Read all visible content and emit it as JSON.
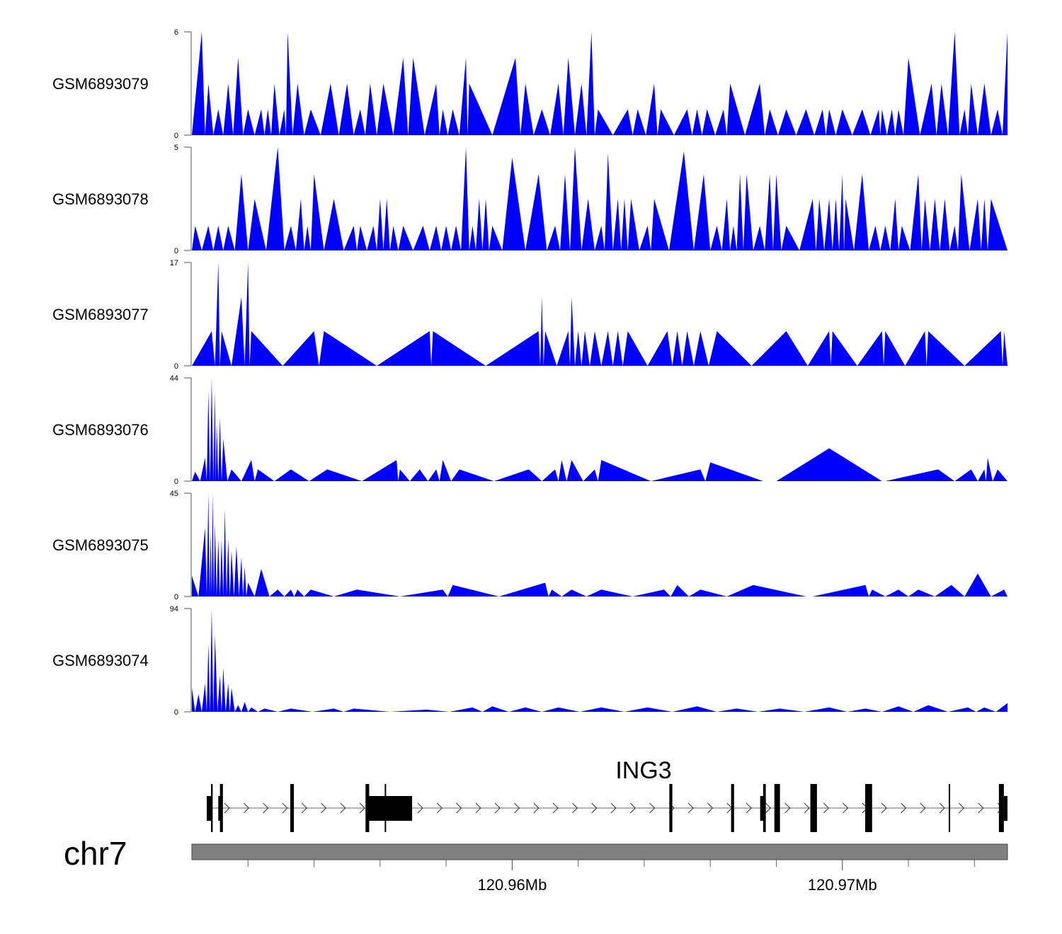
{
  "chart_data": {
    "type": "area",
    "title": "",
    "chromosome": "chr7",
    "x_units": "kb offset from 120.95 Mb",
    "xlim": [
      0.3,
      25.0
    ],
    "fill_color": "#0000ff",
    "x_axis": {
      "major_ticks": [
        {
          "pos": 10,
          "label": "120.96Mb"
        },
        {
          "pos": 20,
          "label": "120.97Mb"
        }
      ],
      "minor_ticks": [
        2,
        4,
        6,
        8,
        12,
        14,
        16,
        18,
        22,
        24
      ]
    },
    "tracks": [
      {
        "name": "GSM6893079",
        "ylim": [
          0,
          6
        ],
        "ytick_labels": [
          "0",
          "6"
        ],
        "points": [
          [
            0.6,
            6
          ],
          [
            0.8,
            3
          ],
          [
            1.1,
            1.5
          ],
          [
            1.4,
            3
          ],
          [
            1.7,
            4.5
          ],
          [
            2.0,
            1.5
          ],
          [
            2.4,
            1.5
          ],
          [
            2.6,
            1.5
          ],
          [
            2.8,
            3
          ],
          [
            3.1,
            1.5
          ],
          [
            3.2,
            6
          ],
          [
            3.5,
            3
          ],
          [
            3.9,
            1.5
          ],
          [
            4.5,
            3
          ],
          [
            5.0,
            3
          ],
          [
            5.4,
            1.5
          ],
          [
            5.7,
            3
          ],
          [
            6.1,
            3
          ],
          [
            6.7,
            4.5
          ],
          [
            7.0,
            4.5
          ],
          [
            7.7,
            3
          ],
          [
            7.9,
            1.5
          ],
          [
            8.2,
            1.5
          ],
          [
            8.6,
            4.5
          ],
          [
            8.7,
            3
          ],
          [
            10.1,
            4.5
          ],
          [
            10.4,
            3
          ],
          [
            10.9,
            1.5
          ],
          [
            11.4,
            3
          ],
          [
            11.7,
            4.5
          ],
          [
            12.1,
            3
          ],
          [
            12.4,
            6
          ],
          [
            12.6,
            1.5
          ],
          [
            13.5,
            1.5
          ],
          [
            13.8,
            1.5
          ],
          [
            14.3,
            3
          ],
          [
            14.5,
            1.5
          ],
          [
            15.3,
            1.5
          ],
          [
            15.6,
            1.5
          ],
          [
            15.9,
            1.5
          ],
          [
            16.4,
            1.5
          ],
          [
            16.6,
            3
          ],
          [
            17.5,
            3
          ],
          [
            17.8,
            1.5
          ],
          [
            18.3,
            1.5
          ],
          [
            18.9,
            1.5
          ],
          [
            19.4,
            1.5
          ],
          [
            19.6,
            1.5
          ],
          [
            20.0,
            1.5
          ],
          [
            20.6,
            1.5
          ],
          [
            21.1,
            1.5
          ],
          [
            21.2,
            1.5
          ],
          [
            21.5,
            1.5
          ],
          [
            21.7,
            1.5
          ],
          [
            22.0,
            4.5
          ],
          [
            22.7,
            3
          ],
          [
            23.0,
            3
          ],
          [
            23.4,
            6
          ],
          [
            23.7,
            1.5
          ],
          [
            23.9,
            3
          ],
          [
            24.3,
            3
          ],
          [
            24.7,
            1.5
          ],
          [
            25.0,
            6
          ]
        ]
      },
      {
        "name": "GSM6893078",
        "ylim": [
          0,
          5
        ],
        "ytick_labels": [
          "0",
          "5"
        ],
        "points": [
          [
            0.4,
            1.2
          ],
          [
            0.8,
            1.2
          ],
          [
            1.1,
            1.2
          ],
          [
            1.4,
            1.2
          ],
          [
            1.8,
            3.7
          ],
          [
            2.2,
            2.5
          ],
          [
            2.9,
            5
          ],
          [
            3.3,
            1.2
          ],
          [
            3.6,
            2.5
          ],
          [
            3.8,
            1.2
          ],
          [
            4.0,
            3.7
          ],
          [
            4.6,
            2.5
          ],
          [
            5.2,
            1.2
          ],
          [
            5.4,
            1.2
          ],
          [
            5.8,
            1.2
          ],
          [
            6.0,
            2.5
          ],
          [
            6.2,
            2.5
          ],
          [
            6.4,
            1.2
          ],
          [
            6.7,
            1.2
          ],
          [
            7.3,
            1.2
          ],
          [
            7.7,
            1.2
          ],
          [
            8.0,
            1.2
          ],
          [
            8.3,
            1.2
          ],
          [
            8.6,
            5
          ],
          [
            8.8,
            1.2
          ],
          [
            9.0,
            2.5
          ],
          [
            9.2,
            2.5
          ],
          [
            9.4,
            1.2
          ],
          [
            10.0,
            4.5
          ],
          [
            10.8,
            3.7
          ],
          [
            11.3,
            1.2
          ],
          [
            11.6,
            3.7
          ],
          [
            11.9,
            5
          ],
          [
            12.3,
            2.5
          ],
          [
            12.7,
            1.2
          ],
          [
            12.9,
            4.7
          ],
          [
            13.2,
            2.5
          ],
          [
            13.4,
            2.5
          ],
          [
            13.6,
            2.5
          ],
          [
            14.1,
            1.2
          ],
          [
            14.3,
            2.5
          ],
          [
            15.2,
            4.8
          ],
          [
            15.8,
            3.7
          ],
          [
            16.2,
            1.2
          ],
          [
            16.5,
            2.5
          ],
          [
            16.7,
            1.2
          ],
          [
            16.9,
            3.7
          ],
          [
            17.1,
            3.7
          ],
          [
            17.5,
            1.2
          ],
          [
            17.8,
            3.7
          ],
          [
            18.0,
            3.7
          ],
          [
            18.3,
            1.2
          ],
          [
            19.1,
            2.5
          ],
          [
            19.3,
            2.5
          ],
          [
            19.6,
            2.5
          ],
          [
            19.8,
            2.5
          ],
          [
            20.0,
            3.7
          ],
          [
            20.1,
            2.5
          ],
          [
            20.6,
            3.7
          ],
          [
            21.0,
            1.2
          ],
          [
            21.3,
            1.2
          ],
          [
            21.6,
            2.5
          ],
          [
            21.8,
            1.2
          ],
          [
            22.3,
            3.7
          ],
          [
            22.5,
            2.5
          ],
          [
            22.8,
            2.5
          ],
          [
            23.1,
            2.5
          ],
          [
            23.4,
            1.2
          ],
          [
            23.6,
            3.7
          ],
          [
            24.1,
            2.5
          ],
          [
            24.3,
            2.5
          ],
          [
            24.5,
            2.5
          ]
        ]
      },
      {
        "name": "GSM6893077",
        "ylim": [
          0,
          17
        ],
        "ytick_labels": [
          "0",
          "17"
        ],
        "points": [
          [
            0.9,
            5.7
          ],
          [
            1.1,
            17
          ],
          [
            1.2,
            5.7
          ],
          [
            1.8,
            11.3
          ],
          [
            2.0,
            17
          ],
          [
            2.1,
            5.7
          ],
          [
            4.0,
            5.7
          ],
          [
            4.3,
            5.7
          ],
          [
            7.5,
            5.7
          ],
          [
            7.6,
            5.7
          ],
          [
            10.8,
            5.7
          ],
          [
            10.9,
            11.3
          ],
          [
            11.0,
            5.7
          ],
          [
            11.7,
            5.7
          ],
          [
            11.8,
            11.3
          ],
          [
            12.0,
            5.7
          ],
          [
            12.2,
            5.7
          ],
          [
            12.5,
            5.7
          ],
          [
            12.9,
            5.7
          ],
          [
            13.2,
            5.7
          ],
          [
            13.5,
            5.7
          ],
          [
            14.7,
            5.7
          ],
          [
            15.0,
            5.7
          ],
          [
            15.3,
            5.7
          ],
          [
            15.7,
            5.7
          ],
          [
            16.2,
            5.7
          ],
          [
            18.3,
            5.7
          ],
          [
            19.6,
            5.7
          ],
          [
            19.7,
            5.7
          ],
          [
            21.2,
            5.7
          ],
          [
            21.3,
            5.7
          ],
          [
            22.5,
            5.7
          ],
          [
            22.6,
            5.7
          ],
          [
            24.8,
            5.7
          ],
          [
            24.9,
            5.7
          ]
        ]
      },
      {
        "name": "GSM6893076",
        "ylim": [
          0,
          44
        ],
        "ytick_labels": [
          "0",
          "44"
        ],
        "points": [
          [
            0.4,
            4
          ],
          [
            0.7,
            10
          ],
          [
            0.8,
            38
          ],
          [
            0.9,
            44
          ],
          [
            1.0,
            38
          ],
          [
            1.05,
            25
          ],
          [
            1.15,
            27
          ],
          [
            1.25,
            18
          ],
          [
            1.5,
            5
          ],
          [
            2.1,
            9
          ],
          [
            2.3,
            5
          ],
          [
            3.3,
            5
          ],
          [
            4.4,
            5
          ],
          [
            6.5,
            9
          ],
          [
            6.6,
            5
          ],
          [
            7.2,
            5
          ],
          [
            7.7,
            5
          ],
          [
            7.9,
            9
          ],
          [
            8.4,
            5
          ],
          [
            10.5,
            5
          ],
          [
            11.3,
            5
          ],
          [
            11.5,
            9
          ],
          [
            11.8,
            9
          ],
          [
            12.5,
            5
          ],
          [
            12.7,
            9
          ],
          [
            15.7,
            5
          ],
          [
            16.0,
            8
          ],
          [
            19.6,
            14
          ],
          [
            22.9,
            5
          ],
          [
            23.9,
            5
          ],
          [
            24.3,
            5
          ],
          [
            24.4,
            10
          ],
          [
            24.7,
            5
          ]
        ]
      },
      {
        "name": "GSM6893075",
        "ylim": [
          0,
          45
        ],
        "ytick_labels": [
          "0",
          "45"
        ],
        "points": [
          [
            0.3,
            9
          ],
          [
            0.7,
            30
          ],
          [
            0.8,
            45
          ],
          [
            0.87,
            28
          ],
          [
            0.93,
            45
          ],
          [
            1.0,
            32
          ],
          [
            1.1,
            25
          ],
          [
            1.2,
            25
          ],
          [
            1.3,
            38
          ],
          [
            1.4,
            25
          ],
          [
            1.5,
            20
          ],
          [
            1.65,
            22
          ],
          [
            1.8,
            17
          ],
          [
            1.9,
            13
          ],
          [
            2.0,
            6
          ],
          [
            2.4,
            12
          ],
          [
            2.9,
            3
          ],
          [
            3.3,
            3
          ],
          [
            3.5,
            3
          ],
          [
            3.9,
            3
          ],
          [
            5.3,
            3
          ],
          [
            7.9,
            3
          ],
          [
            8.2,
            5
          ],
          [
            11.0,
            6
          ],
          [
            11.2,
            3
          ],
          [
            11.8,
            3
          ],
          [
            12.7,
            3
          ],
          [
            14.6,
            3
          ],
          [
            15.0,
            5
          ],
          [
            15.7,
            3
          ],
          [
            17.3,
            5
          ],
          [
            20.7,
            5
          ],
          [
            20.9,
            3
          ],
          [
            21.7,
            3
          ],
          [
            22.3,
            3
          ],
          [
            23.3,
            5
          ],
          [
            24.1,
            10
          ],
          [
            24.9,
            3
          ]
        ]
      },
      {
        "name": "GSM6893074",
        "ylim": [
          0,
          94
        ],
        "ytick_labels": [
          "0",
          "94"
        ],
        "points": [
          [
            0.3,
            22
          ],
          [
            0.5,
            16
          ],
          [
            0.7,
            26
          ],
          [
            0.8,
            62
          ],
          [
            0.9,
            94
          ],
          [
            1.0,
            70
          ],
          [
            1.15,
            33
          ],
          [
            1.25,
            40
          ],
          [
            1.4,
            26
          ],
          [
            1.5,
            22
          ],
          [
            1.7,
            6
          ],
          [
            1.9,
            9
          ],
          [
            2.1,
            4
          ],
          [
            2.5,
            3
          ],
          [
            3.3,
            3
          ],
          [
            4.6,
            3
          ],
          [
            5.2,
            3
          ],
          [
            7.4,
            2
          ],
          [
            8.8,
            4
          ],
          [
            9.4,
            5
          ],
          [
            10.4,
            4
          ],
          [
            11.4,
            4
          ],
          [
            12.7,
            4
          ],
          [
            14.1,
            4
          ],
          [
            15.6,
            5
          ],
          [
            16.8,
            3
          ],
          [
            18.1,
            3
          ],
          [
            19.6,
            4
          ],
          [
            20.7,
            3
          ],
          [
            21.7,
            5
          ],
          [
            22.6,
            6
          ],
          [
            23.8,
            4
          ],
          [
            24.3,
            4
          ],
          [
            25.0,
            8
          ]
        ]
      }
    ],
    "gene": {
      "name": "ING3",
      "strand": "+",
      "span": [
        0.75,
        25.0
      ],
      "utr": [
        [
          0.75,
          0.9
        ],
        [
          1.1,
          1.2
        ],
        [
          5.6,
          6.97
        ],
        [
          17.51,
          17.68
        ],
        [
          24.89,
          25.0
        ]
      ],
      "exons": [
        [
          0.88,
          0.93
        ],
        [
          1.15,
          1.24
        ],
        [
          3.28,
          3.39
        ],
        [
          5.56,
          5.67
        ],
        [
          6.14,
          6.18
        ],
        [
          14.76,
          14.85
        ],
        [
          16.63,
          16.72
        ],
        [
          17.6,
          17.68
        ],
        [
          17.94,
          18.11
        ],
        [
          19.03,
          19.23
        ],
        [
          20.69,
          20.9
        ],
        [
          23.22,
          23.26
        ],
        [
          24.74,
          24.89
        ]
      ]
    }
  }
}
